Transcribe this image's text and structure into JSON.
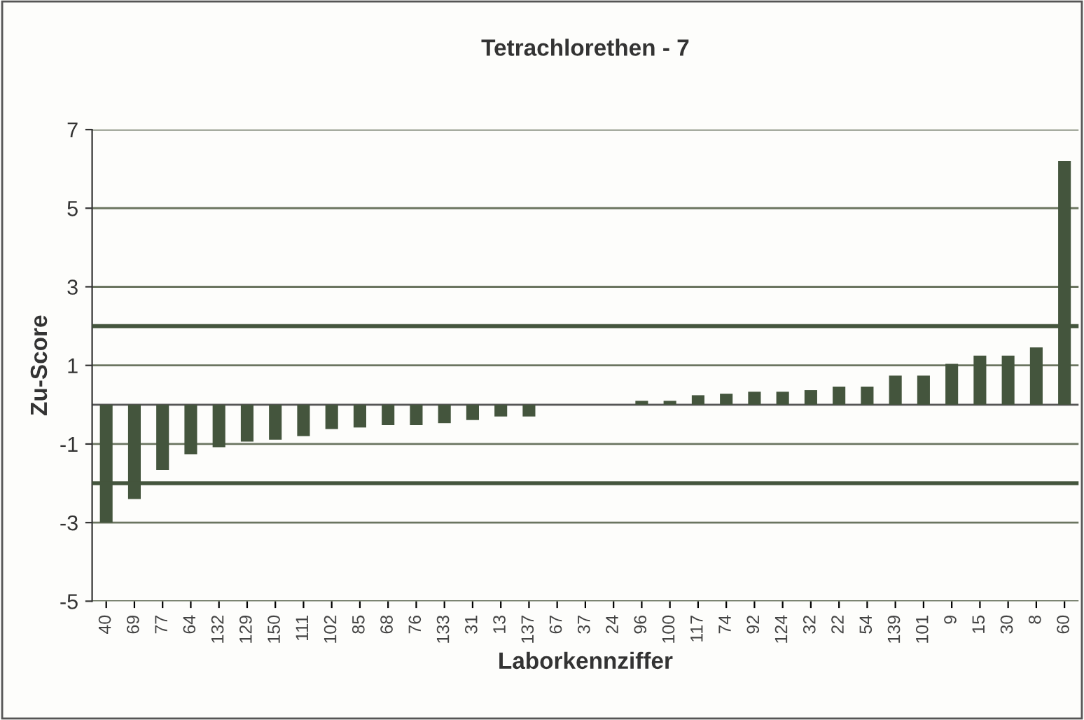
{
  "chart_data": {
    "type": "bar",
    "title": "Tetrachlorethen - 7",
    "xlabel": "Laborkennziffer",
    "ylabel": "Zu-Score",
    "categories": [
      "40",
      "69",
      "77",
      "64",
      "132",
      "129",
      "150",
      "111",
      "102",
      "85",
      "68",
      "76",
      "133",
      "31",
      "13",
      "137",
      "67",
      "37",
      "24",
      "96",
      "100",
      "117",
      "74",
      "92",
      "124",
      "32",
      "22",
      "54",
      "139",
      "101",
      "9",
      "15",
      "30",
      "8",
      "60"
    ],
    "values": [
      -3.0,
      -2.4,
      -1.66,
      -1.26,
      -1.08,
      -0.94,
      -0.89,
      -0.8,
      -0.62,
      -0.58,
      -0.52,
      -0.52,
      -0.47,
      -0.39,
      -0.3,
      -0.3,
      0,
      0,
      0,
      0.1,
      0.1,
      0.24,
      0.28,
      0.33,
      0.33,
      0.37,
      0.46,
      0.46,
      0.74,
      0.74,
      1.04,
      1.25,
      1.25,
      1.46,
      6.2
    ],
    "color": "#44553d",
    "ylim": [
      -5,
      7
    ],
    "yticks": [
      -5,
      -3,
      -1,
      1,
      3,
      5,
      7
    ],
    "grid": "y",
    "legend": false,
    "ref_lines": [
      {
        "axis": "y",
        "value": 2,
        "color": "#44553d"
      },
      {
        "axis": "y",
        "value": -2,
        "color": "#44553d"
      }
    ]
  }
}
